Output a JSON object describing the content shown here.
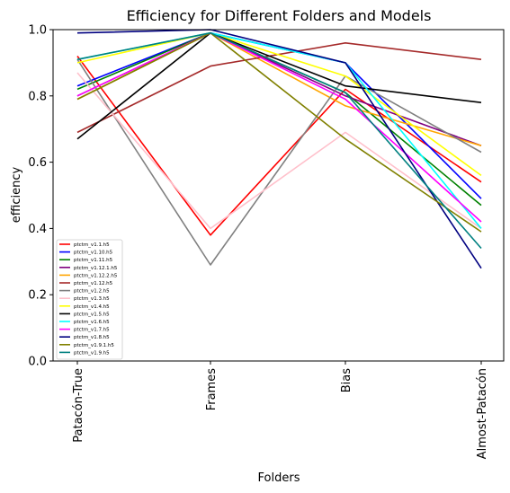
{
  "chart_data": {
    "type": "line",
    "title": "Efficiency for Different Folders and Models",
    "xlabel": "Folders",
    "ylabel": "efficiency",
    "categories": [
      "Patacón-True",
      "Frames",
      "Bias",
      "Almost-Patacón"
    ],
    "ylim": [
      0.0,
      1.0
    ],
    "yticks": [
      "0.0",
      "0.2",
      "0.4",
      "0.6",
      "0.8",
      "1.0"
    ],
    "grid": false,
    "legend_position": "lower-left",
    "series": [
      {
        "name": "ptctm_v1.1.h5",
        "color": "#ff0000",
        "values": [
          0.92,
          0.38,
          0.82,
          0.54
        ]
      },
      {
        "name": "ptctm_v1.10.h5",
        "color": "#0000ff",
        "values": [
          0.83,
          0.99,
          0.9,
          0.49
        ]
      },
      {
        "name": "ptctm_v1.11.h5",
        "color": "#008000",
        "values": [
          0.82,
          0.99,
          0.81,
          0.47
        ]
      },
      {
        "name": "ptctm_v1.12.1.h5",
        "color": "#800080",
        "values": [
          0.8,
          0.99,
          0.8,
          0.65
        ]
      },
      {
        "name": "ptctm_v1.12.2.h5",
        "color": "#ffa500",
        "values": [
          0.79,
          0.99,
          0.77,
          0.65
        ]
      },
      {
        "name": "ptctm_v1.12.h5",
        "color": "#a52a2a",
        "values": [
          0.69,
          0.89,
          0.96,
          0.91
        ]
      },
      {
        "name": "ptctm_v1.2.h5",
        "color": "#808080",
        "values": [
          0.91,
          0.29,
          0.86,
          0.63
        ]
      },
      {
        "name": "ptctm_v1.3.h5",
        "color": "#ffc0cb",
        "values": [
          0.87,
          0.4,
          0.69,
          0.4
        ]
      },
      {
        "name": "ptctm_v1.4.h5",
        "color": "#ffff00",
        "values": [
          0.9,
          0.99,
          0.86,
          0.56
        ]
      },
      {
        "name": "ptctm_v1.5.h5",
        "color": "#000000",
        "values": [
          0.67,
          0.99,
          0.83,
          0.78
        ]
      },
      {
        "name": "ptctm_v1.6.h5",
        "color": "#00ffff",
        "values": [
          0.91,
          0.99,
          0.9,
          0.4
        ]
      },
      {
        "name": "ptctm_v1.7.h5",
        "color": "#ff00ff",
        "values": [
          0.8,
          0.99,
          0.79,
          0.42
        ]
      },
      {
        "name": "ptctm_v1.8.h5",
        "color": "#000080",
        "values": [
          0.99,
          1.0,
          0.9,
          0.28
        ]
      },
      {
        "name": "ptctm_v1.9.1.h5",
        "color": "#808000",
        "values": [
          0.79,
          0.99,
          0.67,
          0.39
        ]
      },
      {
        "name": "ptctm_v1.9.h5",
        "color": "#008080",
        "values": [
          0.91,
          0.99,
          0.81,
          0.34
        ]
      }
    ]
  }
}
